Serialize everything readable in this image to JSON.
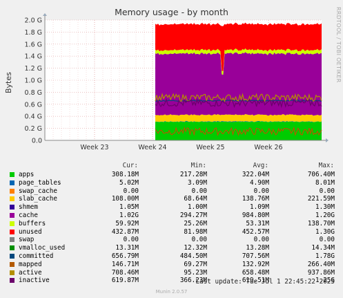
{
  "title": "Memory usage - by month",
  "rrd_credit": "RRDTOOL / TOBI OETIKER",
  "ylabel": "Bytes",
  "footer": "Munin 2.0.57",
  "last_update": "Last update: Tue Jul  1 22:45:22 2025",
  "legend_headers": {
    "cur": "Cur:",
    "min": "Min:",
    "avg": "Avg:",
    "max": "Max:"
  },
  "legend": [
    {
      "name": "apps",
      "color": "#00cc00",
      "cur": "308.18M",
      "min": "217.28M",
      "avg": "322.04M",
      "max": "706.40M"
    },
    {
      "name": "page_tables",
      "color": "#0066b3",
      "cur": "5.02M",
      "min": "3.09M",
      "avg": "4.90M",
      "max": "8.01M"
    },
    {
      "name": "swap_cache",
      "color": "#ff8000",
      "cur": "0.00",
      "min": "0.00",
      "avg": "0.00",
      "max": "0.00"
    },
    {
      "name": "slab_cache",
      "color": "#ffcc00",
      "cur": "108.00M",
      "min": "68.64M",
      "avg": "138.76M",
      "max": "221.59M"
    },
    {
      "name": "shmem",
      "color": "#330099",
      "cur": "1.05M",
      "min": "1.00M",
      "avg": "1.09M",
      "max": "1.30M"
    },
    {
      "name": "cache",
      "color": "#990099",
      "cur": "1.02G",
      "min": "294.27M",
      "avg": "984.80M",
      "max": "1.20G"
    },
    {
      "name": "buffers",
      "color": "#ccff00",
      "cur": "59.92M",
      "min": "25.26M",
      "avg": "53.31M",
      "max": "138.70M"
    },
    {
      "name": "unused",
      "color": "#ff0000",
      "cur": "432.87M",
      "min": "81.98M",
      "avg": "452.57M",
      "max": "1.30G"
    },
    {
      "name": "swap",
      "color": "#808080",
      "cur": "0.00",
      "min": "0.00",
      "avg": "0.00",
      "max": "0.00"
    },
    {
      "name": "vmalloc_used",
      "color": "#008f00",
      "cur": "13.31M",
      "min": "12.32M",
      "avg": "13.28M",
      "max": "14.34M"
    },
    {
      "name": "committed",
      "color": "#00487d",
      "cur": "656.79M",
      "min": "484.50M",
      "avg": "707.56M",
      "max": "1.78G"
    },
    {
      "name": "mapped",
      "color": "#b35a00",
      "cur": "146.71M",
      "min": "69.27M",
      "avg": "132.92M",
      "max": "266.40M"
    },
    {
      "name": "active",
      "color": "#b38f00",
      "cur": "708.46M",
      "min": "95.23M",
      "avg": "658.48M",
      "max": "937.86M"
    },
    {
      "name": "inactive",
      "color": "#6b006b",
      "cur": "619.87M",
      "min": "366.23M",
      "avg": "619.51M",
      "max": "1.25G"
    }
  ],
  "chart_data": {
    "type": "area",
    "title": "Memory usage - by month",
    "ylabel": "Bytes",
    "ylim": [
      0,
      2.0
    ],
    "y_unit": "G",
    "y_ticks": [
      "0.0",
      "0.2 G",
      "0.4 G",
      "0.6 G",
      "0.8 G",
      "1.0 G",
      "1.2 G",
      "1.4 G",
      "1.6 G",
      "1.8 G",
      "2.0 G"
    ],
    "x_ticks": [
      "Week 23",
      "Week 24",
      "Week 25",
      "Week 26"
    ],
    "grid": true,
    "data_start_week": 24,
    "stacked_series_G": [
      {
        "name": "apps",
        "value": 0.31
      },
      {
        "name": "page_tables",
        "value": 0.005
      },
      {
        "name": "slab_cache",
        "value": 0.11
      },
      {
        "name": "cache",
        "value": 1.02
      },
      {
        "name": "buffers",
        "value": 0.06
      },
      {
        "name": "unused",
        "value": 0.43
      }
    ],
    "line_series_G": [
      {
        "name": "committed",
        "value": 0.66
      },
      {
        "name": "mapped",
        "value": 0.15
      },
      {
        "name": "active",
        "value": 0.71
      },
      {
        "name": "inactive",
        "value": 0.62
      }
    ]
  }
}
